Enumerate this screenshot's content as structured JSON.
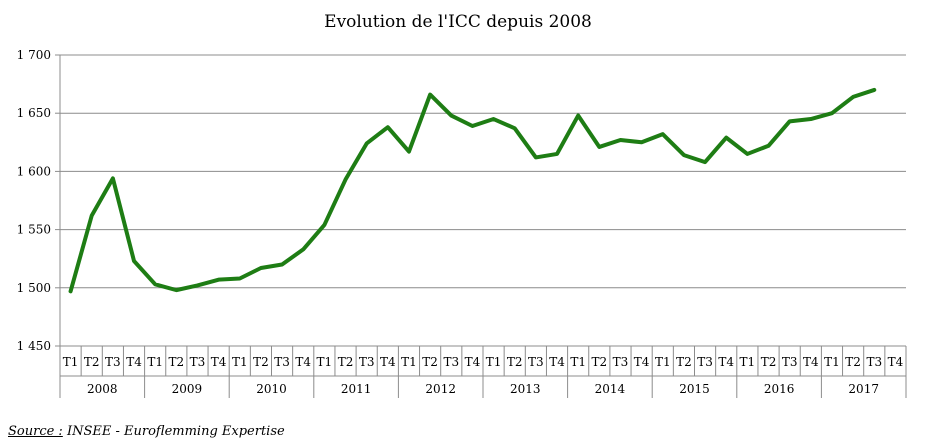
{
  "chart_data": {
    "type": "line",
    "title": "Evolution de l'ICC depuis 2008",
    "xlabel": "",
    "ylabel": "",
    "ylim": [
      1450,
      1700
    ],
    "yticks": [
      1450,
      1500,
      1550,
      1600,
      1650,
      1700
    ],
    "ytick_labels": [
      "1 450",
      "1 500",
      "1 550",
      "1 600",
      "1 650",
      "1 700"
    ],
    "years": [
      "2008",
      "2009",
      "2010",
      "2011",
      "2012",
      "2013",
      "2014",
      "2015",
      "2016",
      "2017"
    ],
    "quarters": [
      "T1",
      "T2",
      "T3",
      "T4"
    ],
    "grid": "horizontal",
    "line_color": "#1e7d14",
    "series": [
      {
        "values": [
          1497,
          1562,
          1594,
          1523,
          1503,
          1498,
          1502,
          1507,
          1508,
          1517,
          1520,
          1533,
          1554,
          1593,
          1624,
          1638,
          1617,
          1666,
          1648,
          1639,
          1645,
          1637,
          1612,
          1615,
          1648,
          1621,
          1627,
          1625,
          1632,
          1614,
          1608,
          1629,
          1615,
          1622,
          1643,
          1645,
          1650,
          1664,
          1670
        ]
      }
    ]
  },
  "source": {
    "label": "Source :",
    "text": " INSEE - Euroflemming Expertise"
  }
}
